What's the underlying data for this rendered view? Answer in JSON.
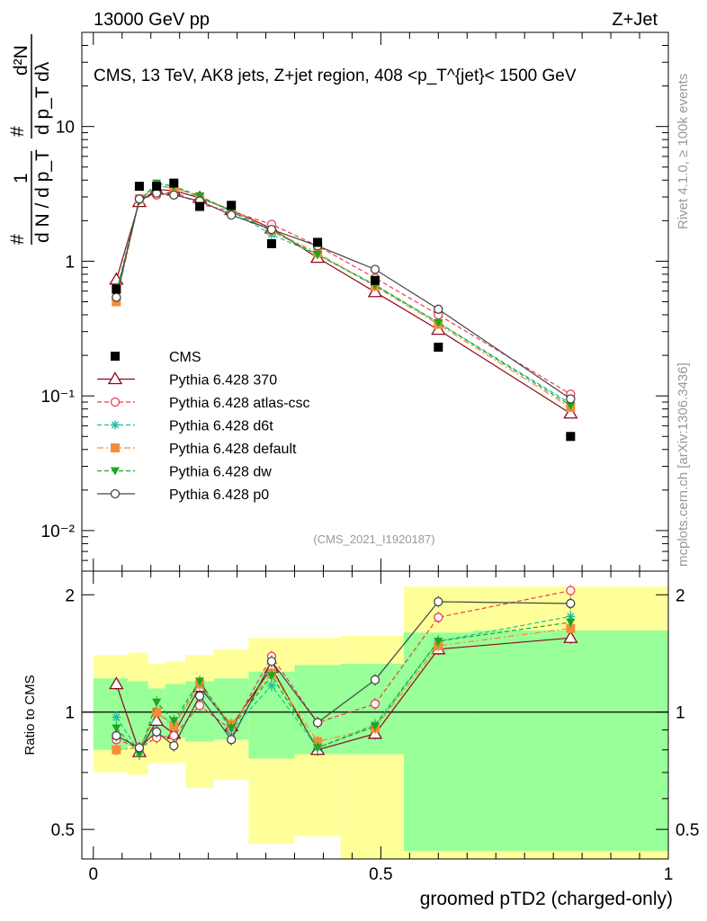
{
  "header": {
    "left_label": "13000 GeV pp",
    "right_label": "Z+Jet"
  },
  "side_labels": {
    "rivet": "Rivet 4.1.0, ≥ 100k events",
    "mcplots": "mcplots.cern.ch [arXiv:1306.3436]"
  },
  "chart_data": [
    {
      "type": "scatter",
      "panel": "main",
      "title": "CMS, 13 TeV, AK8 jets, Z+jet region, 408 <p_T^{jet}< 1500 GeV",
      "analysis_id": "(CMS_2021_I1920187)",
      "yscale": "log",
      "ylim": [
        0.005,
        50
      ],
      "xlim": [
        -0.02,
        1.0
      ],
      "ylabel_parts": [
        "#",
        "1",
        "d N / d p_T",
        "#",
        "d²N",
        "d p_T dλ"
      ],
      "y_tick_labels": [
        "10⁻²",
        "10⁻¹",
        "1",
        "10"
      ],
      "y_tick_values": [
        0.01,
        0.1,
        1,
        10
      ],
      "legend_position": "lower-left",
      "series": [
        {
          "name": "CMS",
          "color": "#000000",
          "marker": "filled-square",
          "line": "none",
          "x": [
            0.04,
            0.08,
            0.11,
            0.14,
            0.185,
            0.24,
            0.31,
            0.39,
            0.49,
            0.6,
            0.83
          ],
          "y": [
            0.62,
            3.6,
            3.6,
            3.8,
            2.55,
            2.6,
            1.35,
            1.38,
            0.72,
            0.23,
            0.05
          ]
        },
        {
          "name": "Pythia 6.428 370",
          "color": "#8b0a1a",
          "marker": "open-triangle",
          "line": "solid",
          "x": [
            0.04,
            0.08,
            0.11,
            0.14,
            0.185,
            0.24,
            0.31,
            0.39,
            0.49,
            0.6,
            0.83
          ],
          "y": [
            0.73,
            2.75,
            3.4,
            3.35,
            2.95,
            2.4,
            1.75,
            1.06,
            0.59,
            0.31,
            0.074
          ]
        },
        {
          "name": "Pythia 6.428 atlas-csc",
          "color": "#ef3b4f",
          "marker": "open-circle",
          "line": "dashed",
          "x": [
            0.04,
            0.08,
            0.11,
            0.14,
            0.185,
            0.24,
            0.31,
            0.39,
            0.49,
            0.6,
            0.83
          ],
          "y": [
            0.53,
            2.9,
            3.1,
            3.3,
            2.65,
            2.35,
            1.88,
            1.3,
            0.75,
            0.4,
            0.103
          ]
        },
        {
          "name": "Pythia 6.428 d6t",
          "color": "#1fbf9f",
          "marker": "star",
          "line": "dashed",
          "x": [
            0.04,
            0.08,
            0.11,
            0.14,
            0.185,
            0.24,
            0.31,
            0.39,
            0.49,
            0.6,
            0.83
          ],
          "y": [
            0.6,
            2.85,
            3.6,
            3.55,
            3.0,
            2.35,
            1.58,
            1.12,
            0.67,
            0.35,
            0.088
          ]
        },
        {
          "name": "Pythia 6.428 default",
          "color": "#f58d3a",
          "marker": "filled-square",
          "line": "dashdot",
          "x": [
            0.04,
            0.08,
            0.11,
            0.14,
            0.185,
            0.24,
            0.31,
            0.39,
            0.49,
            0.6,
            0.83
          ],
          "y": [
            0.5,
            2.9,
            3.6,
            3.5,
            3.0,
            2.4,
            1.7,
            1.15,
            0.65,
            0.34,
            0.082
          ]
        },
        {
          "name": "Pythia 6.428 dw",
          "color": "#1fa51f",
          "marker": "filled-down-triangle",
          "line": "dashed",
          "x": [
            0.04,
            0.08,
            0.11,
            0.14,
            0.185,
            0.24,
            0.31,
            0.39,
            0.49,
            0.6,
            0.83
          ],
          "y": [
            0.57,
            2.8,
            3.8,
            3.6,
            3.05,
            2.35,
            1.68,
            1.12,
            0.66,
            0.35,
            0.085
          ]
        },
        {
          "name": "Pythia 6.428 p0",
          "color": "#444444",
          "marker": "open-circle",
          "line": "solid",
          "x": [
            0.04,
            0.08,
            0.11,
            0.14,
            0.185,
            0.24,
            0.31,
            0.39,
            0.49,
            0.6,
            0.83
          ],
          "y": [
            0.54,
            2.9,
            3.2,
            3.1,
            2.8,
            2.2,
            1.72,
            1.3,
            0.87,
            0.44,
            0.095
          ]
        }
      ]
    },
    {
      "type": "scatter",
      "panel": "ratio",
      "ylabel": "Ratio to CMS",
      "xlabel": "groomed pTD2 (charged-only)",
      "yscale": "log",
      "ylim": [
        0.42,
        2.3
      ],
      "xlim": [
        -0.02,
        1.0
      ],
      "y_tick_labels": [
        "0.5",
        "1",
        "2"
      ],
      "y_tick_values": [
        0.5,
        1,
        2
      ],
      "x_tick_labels": [
        "0",
        "0.5",
        "1"
      ],
      "x_tick_values": [
        0,
        0.5,
        1
      ],
      "reference_line": 1,
      "band_edges": [
        0,
        0.06,
        0.095,
        0.125,
        0.16,
        0.21,
        0.27,
        0.35,
        0.43,
        0.54,
        0.66,
        1.0
      ],
      "band_green": [
        [
          0.8,
          1.22
        ],
        [
          0.82,
          1.2
        ],
        [
          0.86,
          1.15
        ],
        [
          0.86,
          1.18
        ],
        [
          0.84,
          1.2
        ],
        [
          0.85,
          1.22
        ],
        [
          0.76,
          1.27
        ],
        [
          0.78,
          1.32
        ],
        [
          0.78,
          1.33
        ],
        [
          0.44,
          1.6
        ],
        [
          0.44,
          1.62
        ]
      ],
      "band_yellow": [
        [
          0.7,
          1.4
        ],
        [
          0.69,
          1.42
        ],
        [
          0.74,
          1.33
        ],
        [
          0.74,
          1.35
        ],
        [
          0.64,
          1.4
        ],
        [
          0.67,
          1.45
        ],
        [
          0.46,
          1.55
        ],
        [
          0.48,
          1.55
        ],
        [
          0.4,
          1.57
        ],
        [
          0.4,
          2.1
        ],
        [
          0.4,
          2.1
        ]
      ],
      "series": [
        {
          "name": "Pythia 6.428 370",
          "color": "#8b0a1a",
          "marker": "open-triangle",
          "line": "solid",
          "x": [
            0.04,
            0.08,
            0.11,
            0.14,
            0.185,
            0.24,
            0.31,
            0.39,
            0.49,
            0.6,
            0.83
          ],
          "y": [
            1.18,
            0.79,
            0.95,
            0.88,
            1.16,
            0.92,
            1.3,
            0.8,
            0.88,
            1.45,
            1.55
          ]
        },
        {
          "name": "Pythia 6.428 atlas-csc",
          "color": "#ef3b4f",
          "marker": "open-circle",
          "line": "dashed",
          "x": [
            0.04,
            0.08,
            0.11,
            0.14,
            0.185,
            0.24,
            0.31,
            0.39,
            0.49,
            0.6,
            0.83
          ],
          "y": [
            0.85,
            0.81,
            0.86,
            0.87,
            1.04,
            0.9,
            1.39,
            0.94,
            1.05,
            1.75,
            2.05
          ]
        },
        {
          "name": "Pythia 6.428 d6t",
          "color": "#1fbf9f",
          "marker": "star",
          "line": "dashed",
          "x": [
            0.04,
            0.08,
            0.11,
            0.14,
            0.185,
            0.24,
            0.31,
            0.39,
            0.49,
            0.6,
            0.83
          ],
          "y": [
            0.97,
            0.79,
            1.0,
            0.93,
            1.18,
            0.9,
            1.17,
            0.81,
            0.93,
            1.52,
            1.76
          ]
        },
        {
          "name": "Pythia 6.428 default",
          "color": "#f58d3a",
          "marker": "filled-square",
          "line": "dashdot",
          "x": [
            0.04,
            0.08,
            0.11,
            0.14,
            0.185,
            0.24,
            0.31,
            0.39,
            0.49,
            0.6,
            0.83
          ],
          "y": [
            0.8,
            0.81,
            1.0,
            0.92,
            1.18,
            0.93,
            1.26,
            0.84,
            0.91,
            1.48,
            1.64
          ]
        },
        {
          "name": "Pythia 6.428 dw",
          "color": "#1fa51f",
          "marker": "filled-down-triangle",
          "line": "dashed",
          "x": [
            0.04,
            0.08,
            0.11,
            0.14,
            0.185,
            0.24,
            0.31,
            0.39,
            0.49,
            0.6,
            0.83
          ],
          "y": [
            0.91,
            0.78,
            1.06,
            0.95,
            1.2,
            0.91,
            1.24,
            0.81,
            0.92,
            1.52,
            1.7
          ]
        },
        {
          "name": "Pythia 6.428 p0",
          "color": "#444444",
          "marker": "open-circle",
          "line": "solid",
          "x": [
            0.04,
            0.08,
            0.11,
            0.14,
            0.185,
            0.24,
            0.31,
            0.39,
            0.49,
            0.6,
            0.83
          ],
          "y": [
            0.87,
            0.81,
            0.89,
            0.82,
            1.1,
            0.85,
            1.35,
            0.94,
            1.21,
            1.92,
            1.9
          ]
        }
      ]
    }
  ]
}
